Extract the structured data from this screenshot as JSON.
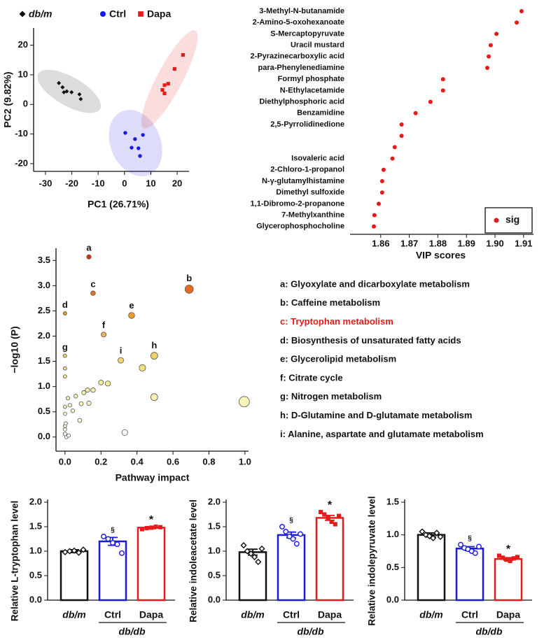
{
  "chart_data": [
    {
      "type": "scatter",
      "xlabel": "PC1 (26.71%)",
      "ylabel": "PC2 (9.82%)",
      "xlim": [
        -34.5,
        24.5
      ],
      "xticks": [
        -30,
        -20,
        -10,
        0,
        10,
        20
      ],
      "ylim": [
        -22.6,
        25.8
      ],
      "yticks": [
        -20,
        -10,
        0,
        10,
        20
      ],
      "series": [
        {
          "name": "db/m",
          "color": "#111111",
          "marker": "diamond",
          "x": [
            -24.9,
            -23.5,
            -21.9,
            -20.1,
            -23.0,
            -17.1,
            -16.6
          ],
          "values": [
            7.2,
            5.8,
            4.4,
            4.1,
            4.1,
            3.4,
            1.8
          ]
        },
        {
          "name": "Ctrl",
          "color": "#1a1ae6",
          "marker": "circle",
          "x": [
            0.3,
            4.0,
            7.0,
            2.7,
            5.3,
            5.9
          ],
          "values": [
            -9.6,
            -11.7,
            -10.3,
            -14.6,
            -14.8,
            -17.4
          ]
        },
        {
          "name": "Dapa",
          "color": "#e61a1a",
          "marker": "square",
          "x": [
            22.2,
            19.0,
            15.2,
            16.6,
            14.4,
            15.2
          ],
          "values": [
            16.7,
            12.0,
            6.5,
            7.0,
            4.9,
            3.7
          ]
        }
      ]
    },
    {
      "type": "dot",
      "xlabel": "VIP scores",
      "categories": [
        "3-Methyl-N-butanamide",
        "2-Amino-5-oxohexanoate",
        "S-Mercaptopyruvate",
        "Uracil mustard",
        "2-Pyrazinecarboxylic acid",
        "para-Phenylenediamine",
        "Formyl phosphate",
        "N-Ethylacetamide",
        "Diethylphosphoric acid",
        "Benzamidine",
        "2,5-Pyrrolidinedione",
        null,
        null,
        "Isovaleric acid",
        "2-Chloro-1-propanol",
        "N-γ-glutamylhistamine",
        "Dimethyl sulfoxide",
        "1,1-Dibromo-2-propanone",
        "7-Methylxanthine",
        "Glycerophosphocholine"
      ],
      "xlim": [
        1.85,
        1.912
      ],
      "xticks": [
        1.86,
        1.87,
        1.88,
        1.89,
        {
          "value": 1.9,
          "label": "1.90"
        },
        1.91
      ],
      "series": [
        {
          "name": "sig",
          "color": "#e61a1a",
          "values": [
            1.9093,
            1.9076,
            1.9005,
            1.8985,
            1.8978,
            1.8973,
            1.8818,
            1.8818,
            1.8774,
            1.8722,
            1.8673,
            1.8673,
            1.8649,
            1.8641,
            1.861,
            1.8605,
            1.8605,
            1.8593,
            1.8578,
            1.8576
          ]
        }
      ]
    },
    {
      "type": "bubble",
      "xlabel": "Pathway impact",
      "ylabel": "−log10 (P)",
      "xlim": [
        -0.05,
        1.02
      ],
      "xticks": [
        {
          "value": 0,
          "label": "0.0"
        },
        0.2,
        0.4,
        0.6,
        0.8,
        {
          "value": 1,
          "label": "1.0"
        }
      ],
      "ylim": [
        -0.28,
        3.74
      ],
      "yticks": [
        {
          "value": 0,
          "label": "0.0"
        },
        0.5,
        {
          "value": 1,
          "label": "1.0"
        },
        1.5,
        {
          "value": 2,
          "label": "2.0"
        },
        2.5,
        {
          "value": 3,
          "label": "3.0"
        },
        3.5
      ],
      "color_scale": [
        "#ffffff",
        "#f3ec8a",
        "#e8a030",
        "#e02a12"
      ],
      "x": [
        0.133,
        0.69,
        0.156,
        0,
        0.37,
        0.215,
        0,
        0.496,
        0.31,
        0.43,
        0,
        0,
        0.238,
        0.2,
        0.156,
        0.125,
        0.105,
        0.06,
        0.016,
        0.496,
        0.996,
        0.133,
        0.09,
        0.027,
        0,
        0.043,
        0,
        0.082,
        0.004,
        0,
        0,
        0.332,
        0,
        0.02,
        0.008
      ],
      "values": [
        3.57,
        2.93,
        2.85,
        2.45,
        2.41,
        2.03,
        1.61,
        1.61,
        1.52,
        1.37,
        1.36,
        1.2,
        1.06,
        1.08,
        0.93,
        0.93,
        0.88,
        0.81,
        0.77,
        0.79,
        0.7,
        0.67,
        0.66,
        0.63,
        0.6,
        0.52,
        0.46,
        0.33,
        0.27,
        0.22,
        0.15,
        0.09,
        0.06,
        0.03,
        0
      ],
      "point_labels": [
        "a",
        "b",
        "c",
        "d",
        "e",
        "f",
        "g",
        "h",
        "i",
        null,
        null,
        null,
        null,
        null,
        null,
        null,
        null,
        null,
        null,
        null,
        null,
        null,
        null,
        null,
        null,
        null,
        null,
        null,
        null,
        null,
        null,
        null,
        null,
        null,
        null
      ],
      "legend_items": [
        {
          "text": "a: Glyoxylate and dicarboxylate metabolism",
          "color": "#111111"
        },
        {
          "text": "b: Caffeine metabolism",
          "color": "#111111"
        },
        {
          "text": "c: Tryptophan metabolism",
          "color": "#e61a1a"
        },
        {
          "text": "d: Biosynthesis of unsaturated fatty acids",
          "color": "#111111"
        },
        {
          "text": "e: Glycerolipid metabolism",
          "color": "#111111"
        },
        {
          "text": "f: Citrate cycle",
          "color": "#111111"
        },
        {
          "text": "g: Nitrogen metabolism",
          "color": "#111111"
        },
        {
          "text": "h: D-Glutamine and D-glutamate metabolism",
          "color": "#111111"
        },
        {
          "text": "i: Alanine, aspartate and glutamate metabolism",
          "color": "#111111"
        }
      ]
    },
    {
      "type": "bar",
      "ylabel": "Relative L-tryptophan level",
      "group_label": "db/db",
      "ylim": [
        0,
        2
      ],
      "yticks": [
        {
          "value": 0,
          "label": "0.0"
        },
        0.5,
        {
          "value": 1,
          "label": "1.0"
        },
        1.5,
        {
          "value": 2,
          "label": "2.0"
        }
      ],
      "categories": [
        "db/m",
        "Ctrl",
        "Dapa"
      ],
      "colors": [
        "#111111",
        "#1a1ae6",
        "#e61a1a"
      ],
      "markers": [
        "diamond",
        "circle",
        "square"
      ],
      "values": [
        1.0,
        1.2,
        1.48
      ],
      "errors": [
        0.03,
        0.08,
        0.02
      ],
      "points": [
        [
          0.98,
          1.0,
          1.01,
          0.97,
          1.03
        ],
        [
          1.3,
          1.25,
          1.17,
          1.14,
          0.96
        ],
        [
          1.45,
          1.47,
          1.48,
          1.5,
          1.49
        ]
      ],
      "significance": [
        null,
        "§",
        "*"
      ]
    },
    {
      "type": "bar",
      "ylabel": "Relative indoleacetate level",
      "group_label": "db/db",
      "ylim": [
        0,
        2
      ],
      "yticks": [
        {
          "value": 0,
          "label": "0.0"
        },
        0.5,
        {
          "value": 1,
          "label": "1.0"
        },
        1.5,
        {
          "value": 2,
          "label": "2.0"
        }
      ],
      "categories": [
        "db/m",
        "Ctrl",
        "Dapa"
      ],
      "colors": [
        "#111111",
        "#1a1ae6",
        "#e61a1a"
      ],
      "markers": [
        "diamond",
        "circle",
        "square"
      ],
      "values": [
        0.98,
        1.33,
        1.68
      ],
      "errors": [
        0.06,
        0.06,
        0.05
      ],
      "points": [
        [
          1.12,
          1.0,
          0.95,
          0.88,
          0.78,
          1.05
        ],
        [
          1.5,
          1.4,
          1.3,
          1.25,
          1.15,
          1.35
        ],
        [
          1.8,
          1.75,
          1.68,
          1.6,
          1.55,
          1.72
        ]
      ],
      "significance": [
        null,
        "§",
        "*"
      ]
    },
    {
      "type": "bar",
      "ylabel": "Relative indolepyruvate level",
      "group_label": "db/db",
      "ylim": [
        0,
        1.5
      ],
      "yticks": [
        {
          "value": 0,
          "label": "0.0"
        },
        0.5,
        {
          "value": 1,
          "label": "1.0"
        },
        1.5
      ],
      "categories": [
        "db/m",
        "Ctrl",
        "Dapa"
      ],
      "colors": [
        "#111111",
        "#1a1ae6",
        "#e61a1a"
      ],
      "markers": [
        "diamond",
        "circle",
        "square"
      ],
      "values": [
        1.0,
        0.79,
        0.63
      ],
      "errors": [
        0.03,
        0.03,
        0.02
      ],
      "points": [
        [
          1.05,
          1.0,
          0.98,
          0.95,
          1.03,
          0.97
        ],
        [
          0.85,
          0.8,
          0.78,
          0.75,
          0.72,
          0.82
        ],
        [
          0.68,
          0.65,
          0.62,
          0.6,
          0.64,
          0.66
        ]
      ],
      "significance": [
        null,
        "§",
        "*"
      ]
    }
  ]
}
